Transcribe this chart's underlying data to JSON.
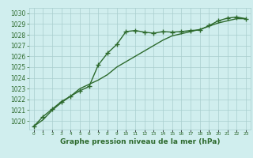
{
  "line1_x": [
    0,
    1,
    2,
    3,
    4,
    5,
    6,
    7,
    8,
    9,
    10,
    11,
    12,
    13,
    14,
    15,
    16,
    17,
    18,
    19,
    20,
    21,
    22,
    23
  ],
  "line1_y": [
    1019.5,
    1020.4,
    1021.1,
    1021.8,
    1022.3,
    1022.8,
    1023.2,
    1025.2,
    1026.3,
    1027.1,
    1028.3,
    1028.4,
    1028.25,
    1028.15,
    1028.3,
    1028.25,
    1028.3,
    1028.4,
    1028.45,
    1028.85,
    1029.3,
    1029.55,
    1029.65,
    1029.5
  ],
  "line2_x": [
    0,
    1,
    2,
    3,
    4,
    5,
    6,
    7,
    8,
    9,
    10,
    11,
    12,
    13,
    14,
    15,
    16,
    17,
    18,
    19,
    20,
    21,
    22,
    23
  ],
  "line2_y": [
    1019.5,
    1020.1,
    1021.0,
    1021.7,
    1022.3,
    1023.0,
    1023.4,
    1023.8,
    1024.3,
    1025.0,
    1025.5,
    1026.0,
    1026.5,
    1027.0,
    1027.5,
    1027.9,
    1028.1,
    1028.3,
    1028.5,
    1028.8,
    1029.1,
    1029.3,
    1029.5,
    1029.5
  ],
  "line_color": "#2d6a2d",
  "bg_color": "#d0eeee",
  "grid_color": "#a8cece",
  "xlabel": "Graphe pression niveau de la mer (hPa)",
  "xlabel_color": "#2d6a2d",
  "ylabel_ticks": [
    1020,
    1021,
    1022,
    1023,
    1024,
    1025,
    1026,
    1027,
    1028,
    1029,
    1030
  ],
  "xtick_labels": [
    "0",
    "1",
    "2",
    "3",
    "4",
    "5",
    "6",
    "7",
    "8",
    "9",
    "10",
    "11",
    "12",
    "13",
    "14",
    "15",
    "16",
    "17",
    "18",
    "19",
    "20",
    "21",
    "22",
    "23"
  ],
  "xlim": [
    -0.5,
    23.5
  ],
  "ylim": [
    1019.2,
    1030.5
  ],
  "tick_color": "#2d6a2d",
  "marker": "+",
  "markersize": 4,
  "markeredgewidth": 1.0,
  "linewidth": 1.0,
  "ylabel_fontsize": 5.5,
  "xlabel_fontsize": 6.5,
  "xtick_fontsize": 4.2
}
